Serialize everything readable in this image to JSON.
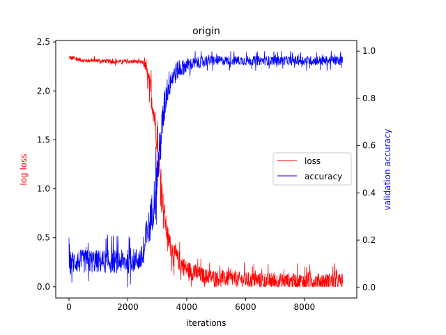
{
  "chart_data": {
    "type": "line",
    "title": "origin",
    "xlabel": "iterations",
    "ylabel_left": "log loss",
    "ylabel_right": "validation accuracy",
    "xlim": [
      -450,
      9780
    ],
    "ylim_left": [
      -0.115,
      2.515
    ],
    "ylim_right": [
      -0.045,
      1.045
    ],
    "x_ticks": [
      0,
      2000,
      4000,
      6000,
      8000
    ],
    "y_ticks_left": [
      0.0,
      0.5,
      1.0,
      1.5,
      2.0,
      2.5
    ],
    "y_ticks_right": [
      0.0,
      0.2,
      0.4,
      0.6,
      0.8,
      1.0
    ],
    "x_tick_labels": [
      "0",
      "2000",
      "4000",
      "6000",
      "8000"
    ],
    "y_tick_labels_left": [
      "0.0",
      "0.5",
      "1.0",
      "1.5",
      "2.0",
      "2.5"
    ],
    "y_tick_labels_right": [
      "0.0",
      "0.2",
      "0.4",
      "0.6",
      "0.8",
      "1.0"
    ],
    "legend": {
      "position": "center-right",
      "entries": [
        "loss",
        "accuracy"
      ]
    },
    "grid": false,
    "series": [
      {
        "name": "loss",
        "axis": "left",
        "color": "#ff0000",
        "x": [
          0,
          200,
          500,
          1000,
          1500,
          2000,
          2300,
          2500,
          2600,
          2700,
          2800,
          2900,
          3000,
          3050,
          3100,
          3200,
          3300,
          3400,
          3600,
          3800,
          4000,
          4300,
          4600,
          5000,
          5500,
          6000,
          7000,
          8000,
          9300
        ],
        "y": [
          2.34,
          2.33,
          2.31,
          2.31,
          2.3,
          2.3,
          2.3,
          2.29,
          2.25,
          2.1,
          1.95,
          1.75,
          1.5,
          1.3,
          1.15,
          0.85,
          0.6,
          0.45,
          0.32,
          0.24,
          0.18,
          0.14,
          0.11,
          0.09,
          0.08,
          0.07,
          0.06,
          0.06,
          0.06
        ],
        "spread": [
          0.025,
          0.025,
          0.02,
          0.02,
          0.02,
          0.02,
          0.02,
          0.02,
          0.05,
          0.12,
          0.14,
          0.14,
          0.14,
          0.14,
          0.13,
          0.12,
          0.12,
          0.11,
          0.1,
          0.1,
          0.09,
          0.09,
          0.08,
          0.08,
          0.08,
          0.08,
          0.08,
          0.08,
          0.08
        ]
      },
      {
        "name": "accuracy",
        "axis": "right",
        "color": "#0000ff",
        "x": [
          0,
          200,
          500,
          1000,
          1500,
          2000,
          2400,
          2550,
          2600,
          2700,
          2800,
          2900,
          3000,
          3100,
          3200,
          3300,
          3400,
          3500,
          3700,
          4000,
          4300,
          4700,
          5000,
          6000,
          7000,
          8000,
          9300
        ],
        "y": [
          0.1,
          0.11,
          0.11,
          0.11,
          0.11,
          0.11,
          0.12,
          0.13,
          0.2,
          0.24,
          0.3,
          0.38,
          0.48,
          0.6,
          0.72,
          0.82,
          0.86,
          0.89,
          0.92,
          0.94,
          0.95,
          0.96,
          0.96,
          0.96,
          0.96,
          0.96,
          0.96
        ],
        "spread": [
          0.05,
          0.05,
          0.05,
          0.05,
          0.05,
          0.05,
          0.05,
          0.06,
          0.07,
          0.08,
          0.09,
          0.09,
          0.09,
          0.09,
          0.08,
          0.07,
          0.06,
          0.05,
          0.04,
          0.03,
          0.025,
          0.025,
          0.02,
          0.02,
          0.02,
          0.02,
          0.02
        ]
      }
    ]
  }
}
